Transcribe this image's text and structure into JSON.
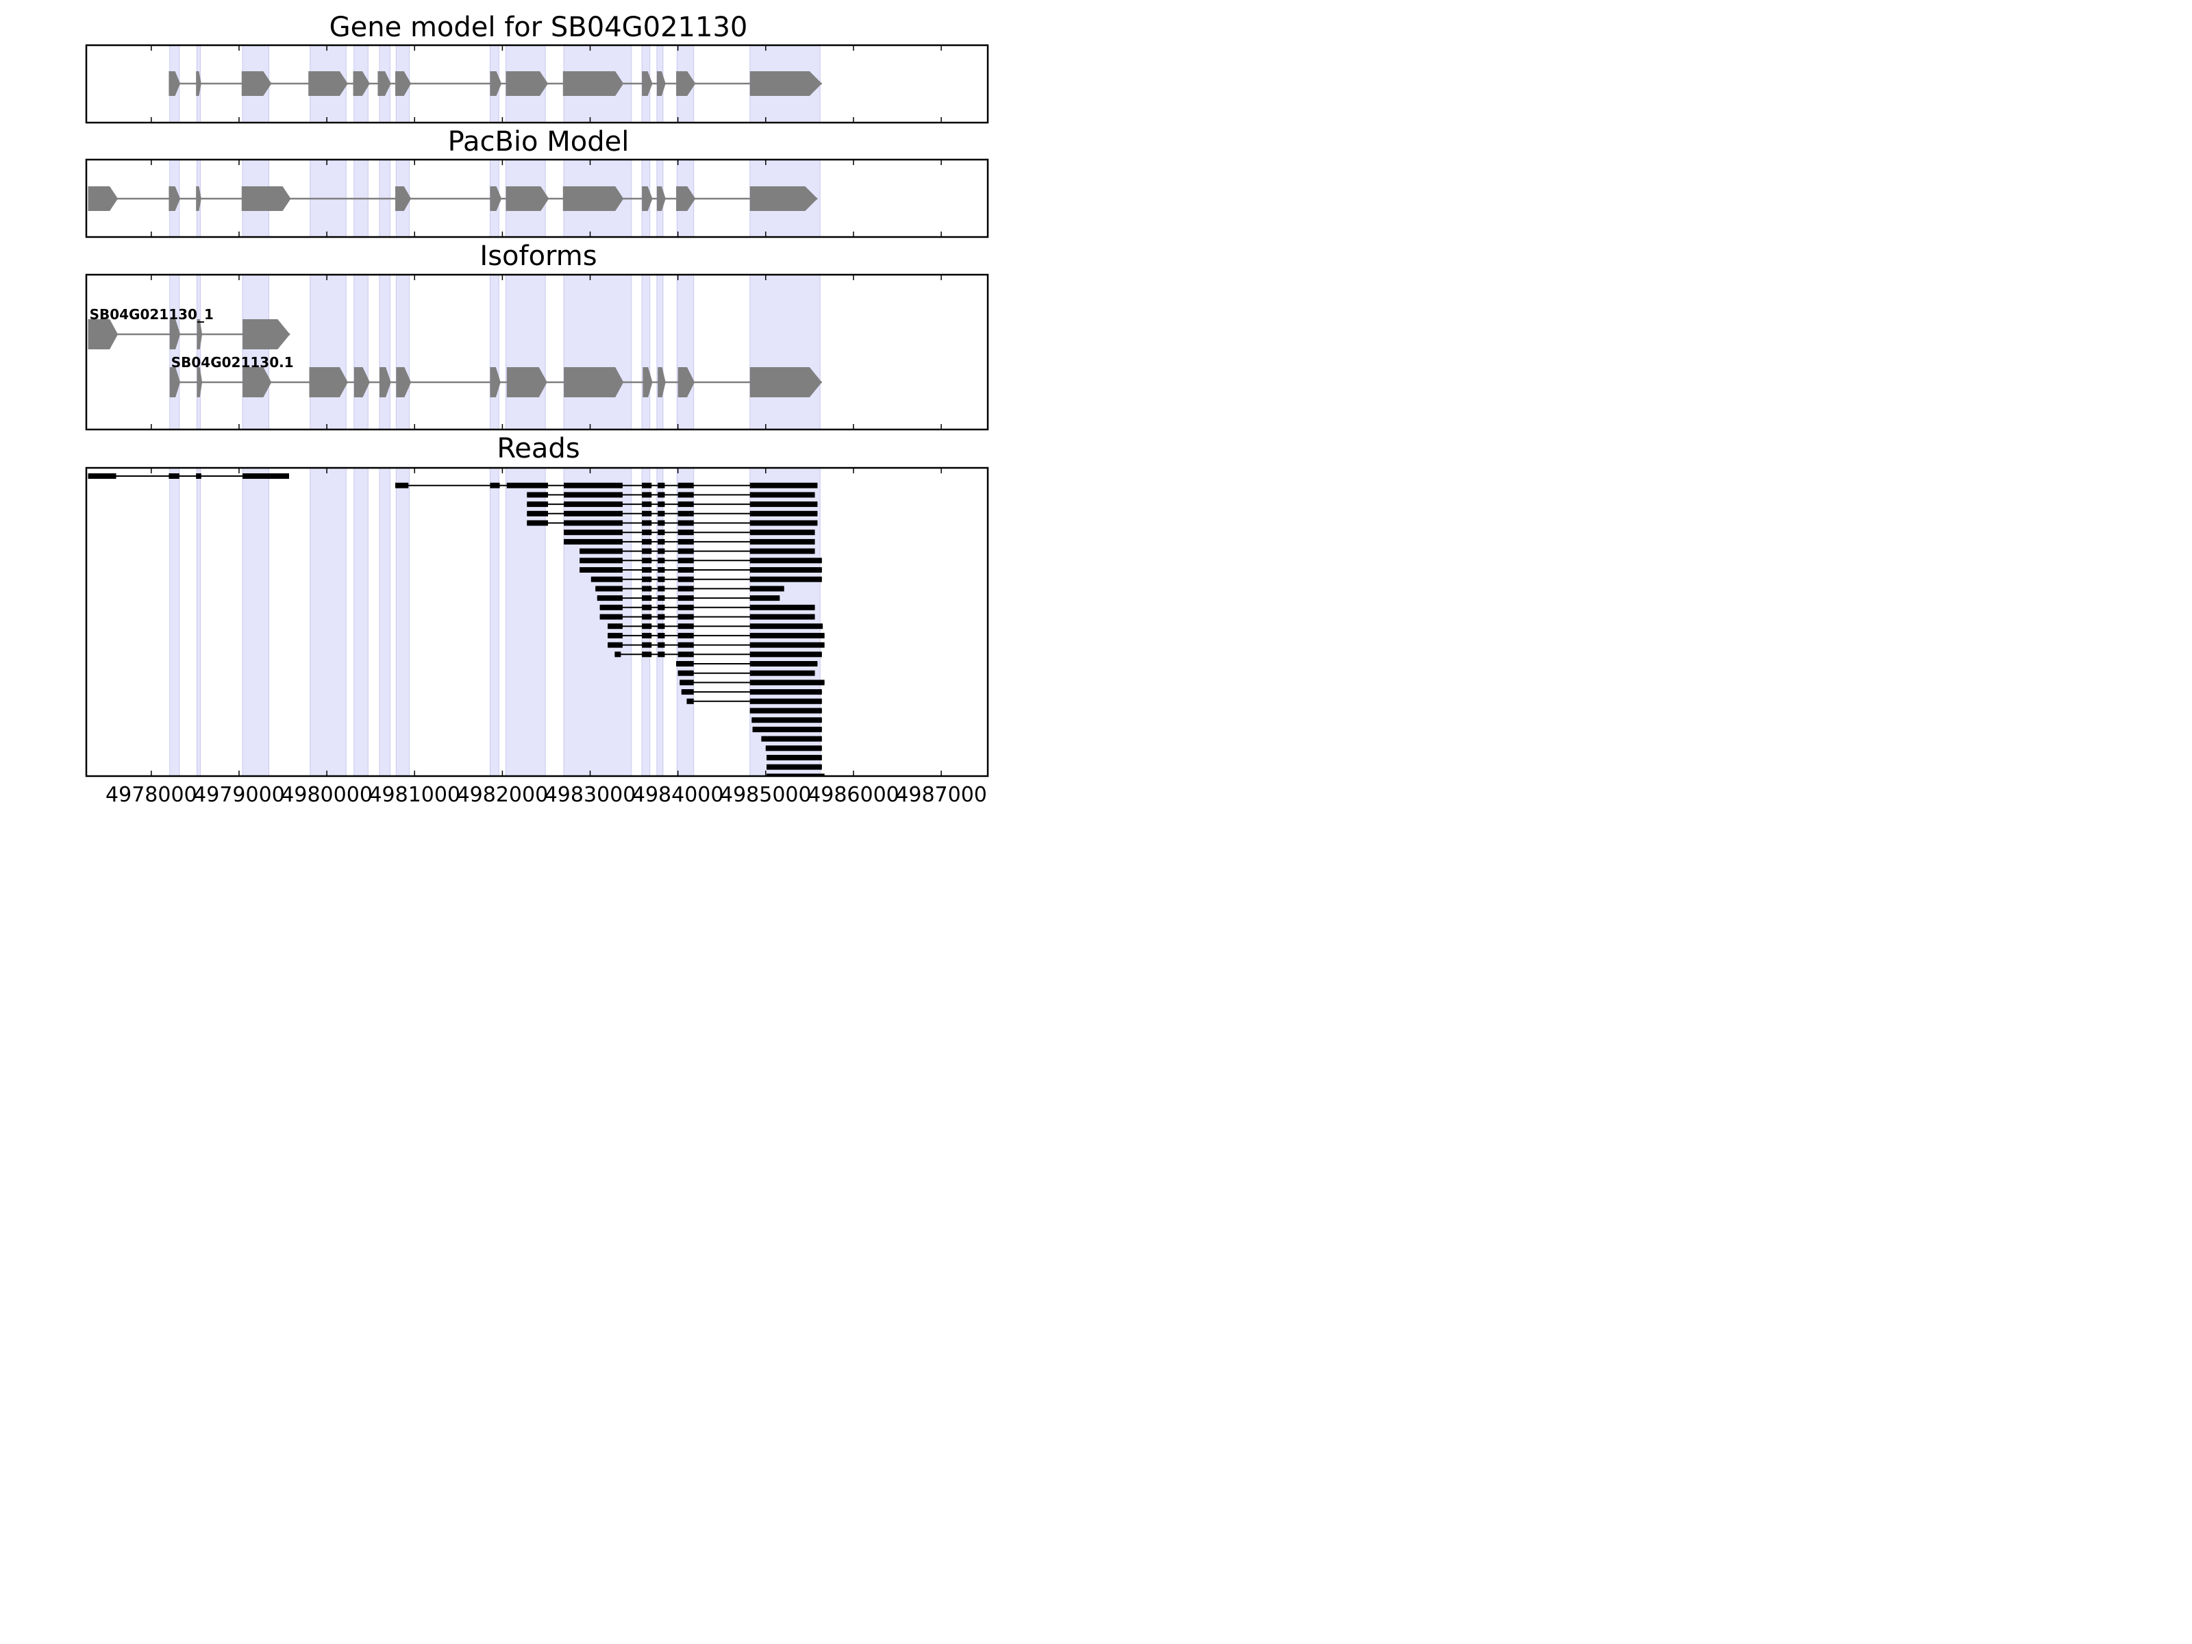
{
  "chart_data": {
    "type": "gene-structure",
    "titles": {
      "gene_model": "Gene model for SB04G021130",
      "pacbio": "PacBio Model",
      "isoforms": "Isoforms",
      "reads": "Reads"
    },
    "x_range": [
      4977260,
      4987530
    ],
    "x_ticks": [
      4978000,
      4979000,
      4980000,
      4981000,
      4982000,
      4983000,
      4984000,
      4985000,
      4986000,
      4987000
    ],
    "x_tick_labels": [
      "4978000",
      "4979000",
      "4980000",
      "4981000",
      "4982000",
      "4983000",
      "4984000",
      "4985000",
      "4986000",
      "4987000"
    ],
    "strand": "+",
    "highlight_color": "#e4e4fb",
    "feature_color": "#7f7f7f",
    "read_color": "#000000",
    "highlight_regions": [
      [
        4978210,
        4978320
      ],
      [
        4978520,
        4978560
      ],
      [
        4979040,
        4979340
      ],
      [
        4979810,
        4980220
      ],
      [
        4980310,
        4980470
      ],
      [
        4980600,
        4980720
      ],
      [
        4980790,
        4980940
      ],
      [
        4981860,
        4981960
      ],
      [
        4982040,
        4982490
      ],
      [
        4982700,
        4983470
      ],
      [
        4983590,
        4983680
      ],
      [
        4983760,
        4983830
      ],
      [
        4983990,
        4984180
      ],
      [
        4984820,
        4985620
      ]
    ],
    "gene_model": [
      [
        4978200,
        4978330
      ],
      [
        4978510,
        4978570
      ],
      [
        4979030,
        4979370
      ],
      [
        4979790,
        4980240
      ],
      [
        4980300,
        4980490
      ],
      [
        4980580,
        4980730
      ],
      [
        4980780,
        4980960
      ],
      [
        4981860,
        4981990
      ],
      [
        4982040,
        4982520
      ],
      [
        4982690,
        4983380
      ],
      [
        4983590,
        4983710
      ],
      [
        4983760,
        4983860
      ],
      [
        4983980,
        4984200
      ],
      [
        4984820,
        4985640
      ]
    ],
    "pacbio_model": [
      [
        4977280,
        4977620
      ],
      [
        4978200,
        4978330
      ],
      [
        4978510,
        4978570
      ],
      [
        4979030,
        4979590
      ],
      [
        4980780,
        4980960
      ],
      [
        4981860,
        4981990
      ],
      [
        4982040,
        4982530
      ],
      [
        4982690,
        4983380
      ],
      [
        4983590,
        4983710
      ],
      [
        4983760,
        4983860
      ],
      [
        4983980,
        4984200
      ],
      [
        4984820,
        4985590
      ]
    ],
    "isoforms": [
      {
        "name": "SB04G021130_1",
        "exons": [
          [
            4977280,
            4977620
          ],
          [
            4978210,
            4978330
          ],
          [
            4978520,
            4978580
          ],
          [
            4979040,
            4979580
          ]
        ]
      },
      {
        "name": "SB04G021130.1",
        "exons": [
          [
            4978210,
            4978330
          ],
          [
            4978520,
            4978580
          ],
          [
            4979040,
            4979370
          ],
          [
            4979800,
            4980240
          ],
          [
            4980310,
            4980490
          ],
          [
            4980600,
            4980730
          ],
          [
            4980790,
            4980960
          ],
          [
            4981860,
            4981980
          ],
          [
            4982050,
            4982510
          ],
          [
            4982700,
            4983380
          ],
          [
            4983600,
            4983710
          ],
          [
            4983770,
            4983860
          ],
          [
            4984000,
            4984190
          ],
          [
            4984820,
            4985640
          ]
        ]
      }
    ],
    "reads": [
      [
        [
          4977280,
          4977600
        ],
        [
          4978200,
          4978320
        ],
        [
          4978510,
          4978570
        ],
        [
          4979040,
          4979570
        ]
      ],
      [
        [
          4980780,
          4980930
        ],
        [
          4981860,
          4981970
        ],
        [
          4982050,
          4982520
        ],
        [
          4982700,
          4983370
        ],
        [
          4983590,
          4983700
        ],
        [
          4983770,
          4983850
        ],
        [
          4984000,
          4984180
        ],
        [
          4984820,
          4985590
        ]
      ],
      [
        [
          4982280,
          4982520
        ],
        [
          4982700,
          4983370
        ],
        [
          4983590,
          4983700
        ],
        [
          4983770,
          4983850
        ],
        [
          4984000,
          4984180
        ],
        [
          4984820,
          4985560
        ]
      ],
      [
        [
          4982280,
          4982520
        ],
        [
          4982700,
          4983370
        ],
        [
          4983590,
          4983700
        ],
        [
          4983770,
          4983850
        ],
        [
          4984000,
          4984180
        ],
        [
          4984820,
          4985590
        ]
      ],
      [
        [
          4982280,
          4982520
        ],
        [
          4982700,
          4983370
        ],
        [
          4983590,
          4983700
        ],
        [
          4983770,
          4983850
        ],
        [
          4984000,
          4984180
        ],
        [
          4984820,
          4985590
        ]
      ],
      [
        [
          4982280,
          4982520
        ],
        [
          4982700,
          4983370
        ],
        [
          4983590,
          4983700
        ],
        [
          4983770,
          4983850
        ],
        [
          4984000,
          4984180
        ],
        [
          4984820,
          4985590
        ]
      ],
      [
        [
          4982700,
          4983370
        ],
        [
          4983590,
          4983700
        ],
        [
          4983770,
          4983850
        ],
        [
          4984000,
          4984180
        ],
        [
          4984820,
          4985560
        ]
      ],
      [
        [
          4982700,
          4983370
        ],
        [
          4983590,
          4983700
        ],
        [
          4983770,
          4983850
        ],
        [
          4984000,
          4984180
        ],
        [
          4984820,
          4985560
        ]
      ],
      [
        [
          4982880,
          4983370
        ],
        [
          4983590,
          4983700
        ],
        [
          4983770,
          4983850
        ],
        [
          4984000,
          4984180
        ],
        [
          4984820,
          4985560
        ]
      ],
      [
        [
          4982880,
          4983370
        ],
        [
          4983590,
          4983700
        ],
        [
          4983770,
          4983850
        ],
        [
          4984000,
          4984180
        ],
        [
          4984820,
          4985640
        ]
      ],
      [
        [
          4982880,
          4983370
        ],
        [
          4983590,
          4983700
        ],
        [
          4983770,
          4983850
        ],
        [
          4984000,
          4984180
        ],
        [
          4984820,
          4985640
        ]
      ],
      [
        [
          4983010,
          4983370
        ],
        [
          4983590,
          4983700
        ],
        [
          4983770,
          4983850
        ],
        [
          4984000,
          4984180
        ],
        [
          4984820,
          4985640
        ]
      ],
      [
        [
          4983060,
          4983370
        ],
        [
          4983590,
          4983700
        ],
        [
          4983770,
          4983850
        ],
        [
          4984000,
          4984180
        ],
        [
          4984820,
          4985210
        ]
      ],
      [
        [
          4983080,
          4983370
        ],
        [
          4983590,
          4983700
        ],
        [
          4983770,
          4983850
        ],
        [
          4984000,
          4984180
        ],
        [
          4984820,
          4985160
        ]
      ],
      [
        [
          4983110,
          4983370
        ],
        [
          4983590,
          4983700
        ],
        [
          4983770,
          4983850
        ],
        [
          4984000,
          4984180
        ],
        [
          4984820,
          4985560
        ]
      ],
      [
        [
          4983110,
          4983370
        ],
        [
          4983590,
          4983700
        ],
        [
          4983770,
          4983850
        ],
        [
          4984000,
          4984180
        ],
        [
          4984820,
          4985560
        ]
      ],
      [
        [
          4983200,
          4983370
        ],
        [
          4983590,
          4983700
        ],
        [
          4983770,
          4983850
        ],
        [
          4984000,
          4984180
        ],
        [
          4984820,
          4985650
        ]
      ],
      [
        [
          4983200,
          4983370
        ],
        [
          4983590,
          4983700
        ],
        [
          4983770,
          4983850
        ],
        [
          4984000,
          4984180
        ],
        [
          4984820,
          4985670
        ]
      ],
      [
        [
          4983200,
          4983370
        ],
        [
          4983590,
          4983700
        ],
        [
          4983770,
          4983850
        ],
        [
          4984000,
          4984180
        ],
        [
          4984820,
          4985670
        ]
      ],
      [
        [
          4983280,
          4983350
        ],
        [
          4983590,
          4983700
        ],
        [
          4983770,
          4983850
        ],
        [
          4984000,
          4984180
        ],
        [
          4984820,
          4985640
        ]
      ],
      [
        [
          4983980,
          4984180
        ],
        [
          4984820,
          4985590
        ]
      ],
      [
        [
          4984000,
          4984180
        ],
        [
          4984820,
          4985560
        ]
      ],
      [
        [
          4984020,
          4984180
        ],
        [
          4984820,
          4985670
        ]
      ],
      [
        [
          4984040,
          4984180
        ],
        [
          4984820,
          4985640
        ]
      ],
      [
        [
          4984100,
          4984180
        ],
        [
          4984820,
          4985640
        ]
      ],
      [
        [
          4984820,
          4985640
        ]
      ],
      [
        [
          4984840,
          4985640
        ]
      ],
      [
        [
          4984850,
          4985640
        ]
      ],
      [
        [
          4984950,
          4985640
        ]
      ],
      [
        [
          4985000,
          4985640
        ]
      ],
      [
        [
          4985010,
          4985640
        ]
      ],
      [
        [
          4985010,
          4985640
        ]
      ],
      [
        [
          4985010,
          4985670
        ]
      ]
    ]
  }
}
